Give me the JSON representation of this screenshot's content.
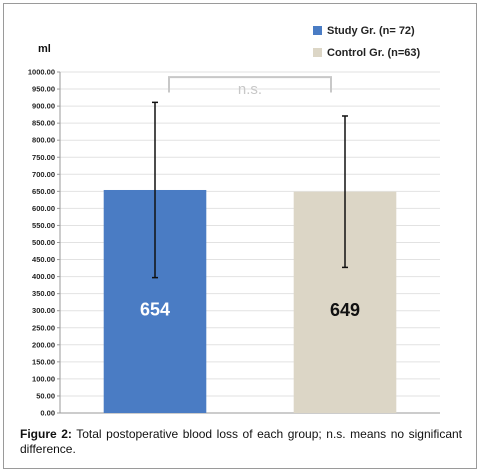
{
  "chart_data": {
    "type": "bar",
    "ylabel": "ml",
    "ylim": [
      0,
      1000
    ],
    "ytick_step": 50,
    "y_ticks": [
      "0.00",
      "50.00",
      "100.00",
      "150.00",
      "200.00",
      "250.00",
      "300.00",
      "350.00",
      "400.00",
      "450.00",
      "500.00",
      "550.00",
      "600.00",
      "650.00",
      "700.00",
      "750.00",
      "800.00",
      "850.00",
      "900.00",
      "950.00",
      "1000.00"
    ],
    "grid": "horizontal",
    "legend_position": "top-right",
    "series": [
      {
        "name": "Study Gr. (n= 72)",
        "value": 654,
        "value_label": "654",
        "error_low": 397,
        "error_high": 911,
        "color": "#4a7cc4",
        "label_color": "#ffffff"
      },
      {
        "name": "Control Gr. (n=63)",
        "value": 649,
        "value_label": "649",
        "error_low": 427,
        "error_high": 871,
        "color": "#dcd6c6",
        "label_color": "#111111"
      }
    ],
    "annotation": {
      "text": "n.s.",
      "level": 985
    }
  },
  "caption": {
    "label": "Figure 2:",
    "text": " Total postoperative blood loss of each group; n.s. means no significant difference."
  }
}
